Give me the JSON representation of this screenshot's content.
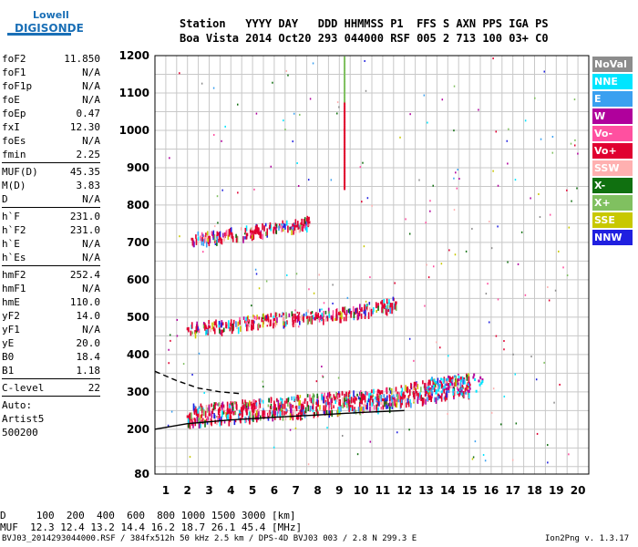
{
  "logo": {
    "line1": "Lowell",
    "line2": "DIGISONDE"
  },
  "header": {
    "labels": "Station   YYYY DAY   DDD HHMMSS P1  FFS S AXN PPS IGA PS",
    "values": "Boa Vista 2014 Oct20 293 044000 RSF 005 2 713 100 03+ C0"
  },
  "params": [
    [
      [
        "foF2",
        "11.850"
      ],
      [
        "foF1",
        "N/A"
      ],
      [
        "foF1p",
        "N/A"
      ],
      [
        "foE",
        "N/A"
      ],
      [
        "foEp",
        "0.47"
      ],
      [
        "fxI",
        "12.30"
      ],
      [
        "foEs",
        "N/A"
      ],
      [
        "fmin",
        "2.25"
      ]
    ],
    [
      [
        "MUF(D)",
        "45.35"
      ],
      [
        "M(D)",
        "3.83"
      ],
      [
        "D",
        "N/A"
      ]
    ],
    [
      [
        "h`F",
        "231.0"
      ],
      [
        "h`F2",
        "231.0"
      ],
      [
        "h`E",
        "N/A"
      ],
      [
        "h`Es",
        "N/A"
      ]
    ],
    [
      [
        "hmF2",
        "252.4"
      ],
      [
        "hmF1",
        "N/A"
      ],
      [
        "hmE",
        "110.0"
      ],
      [
        "yF2",
        "14.0"
      ],
      [
        "yF1",
        "N/A"
      ],
      [
        "yE",
        "20.0"
      ],
      [
        "B0",
        "18.4"
      ],
      [
        "B1",
        "1.18"
      ]
    ],
    [
      [
        "C-level",
        "22"
      ]
    ]
  ],
  "auto": {
    "label": "Auto:",
    "artist": "Artist5",
    "code": "500200"
  },
  "legend": [
    {
      "label": "NoVal",
      "color": "#8c8c8c"
    },
    {
      "label": "NNE",
      "color": "#00e5ff"
    },
    {
      "label": "E",
      "color": "#3aa0f0"
    },
    {
      "label": "W",
      "color": "#b0009c"
    },
    {
      "label": "Vo-",
      "color": "#ff50a0"
    },
    {
      "label": "Vo+",
      "color": "#e00030"
    },
    {
      "label": "SSW",
      "color": "#ffb0b0"
    },
    {
      "label": "X-",
      "color": "#107010"
    },
    {
      "label": "X+",
      "color": "#80c060"
    },
    {
      "label": "SSE",
      "color": "#c8c800"
    },
    {
      "label": "NNW",
      "color": "#2020e0"
    }
  ],
  "muf_table": {
    "row1": "D     100  200  400  600  800 1000 1500 3000 [km]",
    "row2": "MUF  12.3 12.4 13.2 14.4 16.2 18.7 26.1 45.4 [MHz]"
  },
  "footer": {
    "left": "BVJ03_2014293044000.RSF / 384fx512h 50 kHz 2.5 km / DPS-4D BVJ03 003 / 2.8 N 299.3 E",
    "right": "Ion2Png v. 1.3.17"
  },
  "chart_data": {
    "type": "scatter",
    "xlim": [
      0.5,
      20.5
    ],
    "ylim": [
      80,
      1200
    ],
    "x_ticks": [
      1,
      2,
      3,
      4,
      5,
      6,
      7,
      8,
      9,
      10,
      11,
      12,
      13,
      14,
      15,
      16,
      17,
      18,
      19,
      20
    ],
    "y_ticks": [
      80,
      200,
      300,
      400,
      500,
      600,
      700,
      800,
      900,
      1000,
      1100,
      1200
    ],
    "grid": true,
    "series": [
      {
        "name": "Vo+",
        "description_points": [
          [
            2.0,
            235
          ],
          [
            3.0,
            240
          ],
          [
            4.0,
            245
          ],
          [
            5.0,
            250
          ],
          [
            6.0,
            255
          ],
          [
            7.0,
            260
          ],
          [
            8.0,
            265
          ],
          [
            9.0,
            270
          ],
          [
            10.0,
            275
          ],
          [
            11.0,
            280
          ],
          [
            12.0,
            290
          ],
          [
            13.0,
            300
          ],
          [
            14.0,
            310
          ],
          [
            15.0,
            320
          ]
        ]
      },
      {
        "name": "Vo+",
        "description_points": [
          [
            2.0,
            470
          ],
          [
            3.0,
            475
          ],
          [
            4.0,
            480
          ],
          [
            5.0,
            490
          ],
          [
            6.0,
            495
          ],
          [
            7.0,
            500
          ],
          [
            8.0,
            505
          ],
          [
            9.0,
            510
          ],
          [
            10.0,
            520
          ],
          [
            11.0,
            530
          ],
          [
            11.6,
            540
          ]
        ]
      },
      {
        "name": "Vo+",
        "description_points": [
          [
            2.2,
            710
          ],
          [
            3.0,
            715
          ],
          [
            4.0,
            725
          ],
          [
            5.0,
            730
          ],
          [
            6.0,
            740
          ],
          [
            7.0,
            745
          ],
          [
            7.6,
            755
          ]
        ]
      }
    ],
    "curves": [
      {
        "name": "profile",
        "points": [
          [
            0.5,
            200
          ],
          [
            2,
            215
          ],
          [
            4,
            225
          ],
          [
            6,
            232
          ],
          [
            8,
            238
          ],
          [
            10,
            245
          ],
          [
            12,
            250
          ]
        ]
      },
      {
        "name": "profile-dashed",
        "points": [
          [
            0.5,
            355
          ],
          [
            1.5,
            330
          ],
          [
            2.5,
            310
          ],
          [
            3.5,
            300
          ],
          [
            4.5,
            295
          ]
        ]
      }
    ]
  }
}
